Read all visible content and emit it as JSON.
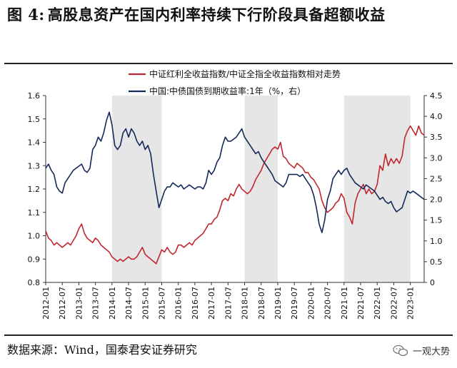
{
  "title": {
    "prefix": "图 4:",
    "text": "高股息资产在国内利率持续下行阶段具备超额收益"
  },
  "footer": {
    "source": "数据来源：Wind，国泰君安证券研究",
    "brand": "一观大势"
  },
  "chart_data": {
    "type": "line",
    "title": "",
    "xlabel": "",
    "ylabel_left": "",
    "ylabel_right": "",
    "y_left": {
      "min": 0.8,
      "max": 1.6,
      "ticks": [
        "0.8",
        "0.9",
        "1.0",
        "1.1",
        "1.2",
        "1.3",
        "1.4",
        "1.5",
        "1.6"
      ]
    },
    "y_right": {
      "min": 0,
      "max": 4.5,
      "ticks": [
        "0",
        "0.5",
        "1.0",
        "1.5",
        "2.0",
        "2.5",
        "3.0",
        "3.5",
        "4.0",
        "4.5"
      ]
    },
    "x_ticks": [
      "2012-01",
      "2012-07",
      "2013-01",
      "2013-07",
      "2014-01",
      "2014-07",
      "2015-01",
      "2015-07",
      "2016-01",
      "2016-07",
      "2017-01",
      "2017-07",
      "2018-01",
      "2018-07",
      "2019-01",
      "2019-07",
      "2020-01",
      "2020-07",
      "2021-01",
      "2021-07",
      "2022-01",
      "2022-07",
      "2023-01"
    ],
    "x_range": [
      "2012-01",
      "2023-06"
    ],
    "legend_position": "top-right",
    "shaded_periods": [
      {
        "start": "2014-01",
        "end": "2015-07"
      },
      {
        "start": "2018-01",
        "end": "2019-01"
      },
      {
        "start": "2021-01",
        "end": "2023-01"
      }
    ],
    "series": [
      {
        "name": "中证红利全收益指数/中证全指全收益指数相对走势",
        "axis": "left",
        "color": "#c0262c",
        "points": [
          [
            "2012-01",
            1.02
          ],
          [
            "2012-02",
            0.99
          ],
          [
            "2012-03",
            0.98
          ],
          [
            "2012-04",
            0.96
          ],
          [
            "2012-05",
            0.97
          ],
          [
            "2012-06",
            0.96
          ],
          [
            "2012-07",
            0.95
          ],
          [
            "2012-08",
            0.96
          ],
          [
            "2012-09",
            0.97
          ],
          [
            "2012-10",
            0.96
          ],
          [
            "2012-11",
            0.98
          ],
          [
            "2012-12",
            1.0
          ],
          [
            "2013-01",
            1.03
          ],
          [
            "2013-02",
            1.05
          ],
          [
            "2013-03",
            1.01
          ],
          [
            "2013-04",
            0.99
          ],
          [
            "2013-05",
            0.98
          ],
          [
            "2013-06",
            0.97
          ],
          [
            "2013-07",
            0.99
          ],
          [
            "2013-08",
            0.98
          ],
          [
            "2013-09",
            0.96
          ],
          [
            "2013-10",
            0.95
          ],
          [
            "2013-11",
            0.94
          ],
          [
            "2013-12",
            0.93
          ],
          [
            "2014-01",
            0.91
          ],
          [
            "2014-02",
            0.9
          ],
          [
            "2014-03",
            0.89
          ],
          [
            "2014-04",
            0.9
          ],
          [
            "2014-05",
            0.89
          ],
          [
            "2014-06",
            0.9
          ],
          [
            "2014-07",
            0.91
          ],
          [
            "2014-08",
            0.9
          ],
          [
            "2014-09",
            0.9
          ],
          [
            "2014-10",
            0.91
          ],
          [
            "2014-11",
            0.93
          ],
          [
            "2014-12",
            0.95
          ],
          [
            "2015-01",
            0.92
          ],
          [
            "2015-02",
            0.91
          ],
          [
            "2015-03",
            0.9
          ],
          [
            "2015-04",
            0.89
          ],
          [
            "2015-05",
            0.88
          ],
          [
            "2015-06",
            0.91
          ],
          [
            "2015-07",
            0.94
          ],
          [
            "2015-08",
            0.93
          ],
          [
            "2015-09",
            0.95
          ],
          [
            "2015-10",
            0.93
          ],
          [
            "2015-11",
            0.92
          ],
          [
            "2015-12",
            0.93
          ],
          [
            "2016-01",
            0.96
          ],
          [
            "2016-02",
            0.96
          ],
          [
            "2016-03",
            0.95
          ],
          [
            "2016-04",
            0.96
          ],
          [
            "2016-05",
            0.97
          ],
          [
            "2016-06",
            0.96
          ],
          [
            "2016-07",
            0.98
          ],
          [
            "2016-08",
            0.99
          ],
          [
            "2016-09",
            1.0
          ],
          [
            "2016-10",
            1.01
          ],
          [
            "2016-11",
            1.03
          ],
          [
            "2016-12",
            1.05
          ],
          [
            "2017-01",
            1.05
          ],
          [
            "2017-02",
            1.07
          ],
          [
            "2017-03",
            1.08
          ],
          [
            "2017-04",
            1.11
          ],
          [
            "2017-05",
            1.15
          ],
          [
            "2017-06",
            1.16
          ],
          [
            "2017-07",
            1.15
          ],
          [
            "2017-08",
            1.18
          ],
          [
            "2017-09",
            1.17
          ],
          [
            "2017-10",
            1.2
          ],
          [
            "2017-11",
            1.22
          ],
          [
            "2017-12",
            1.2
          ],
          [
            "2018-01",
            1.19
          ],
          [
            "2018-02",
            1.18
          ],
          [
            "2018-03",
            1.19
          ],
          [
            "2018-04",
            1.21
          ],
          [
            "2018-05",
            1.24
          ],
          [
            "2018-06",
            1.26
          ],
          [
            "2018-07",
            1.28
          ],
          [
            "2018-08",
            1.31
          ],
          [
            "2018-09",
            1.33
          ],
          [
            "2018-10",
            1.35
          ],
          [
            "2018-11",
            1.37
          ],
          [
            "2018-12",
            1.38
          ],
          [
            "2019-01",
            1.37
          ],
          [
            "2019-02",
            1.4
          ],
          [
            "2019-03",
            1.34
          ],
          [
            "2019-04",
            1.33
          ],
          [
            "2019-05",
            1.31
          ],
          [
            "2019-06",
            1.3
          ],
          [
            "2019-07",
            1.29
          ],
          [
            "2019-08",
            1.31
          ],
          [
            "2019-09",
            1.3
          ],
          [
            "2019-10",
            1.29
          ],
          [
            "2019-11",
            1.27
          ],
          [
            "2019-12",
            1.27
          ],
          [
            "2020-01",
            1.25
          ],
          [
            "2020-02",
            1.24
          ],
          [
            "2020-03",
            1.22
          ],
          [
            "2020-04",
            1.2
          ],
          [
            "2020-05",
            1.15
          ],
          [
            "2020-06",
            1.12
          ],
          [
            "2020-07",
            1.1
          ],
          [
            "2020-08",
            1.11
          ],
          [
            "2020-09",
            1.12
          ],
          [
            "2020-10",
            1.14
          ],
          [
            "2020-11",
            1.15
          ],
          [
            "2020-12",
            1.18
          ],
          [
            "2021-01",
            1.16
          ],
          [
            "2021-02",
            1.1
          ],
          [
            "2021-03",
            1.08
          ],
          [
            "2021-04",
            1.05
          ],
          [
            "2021-05",
            1.14
          ],
          [
            "2021-06",
            1.18
          ],
          [
            "2021-07",
            1.2
          ],
          [
            "2021-08",
            1.22
          ],
          [
            "2021-09",
            1.18
          ],
          [
            "2021-10",
            1.2
          ],
          [
            "2021-11",
            1.18
          ],
          [
            "2021-12",
            1.19
          ],
          [
            "2022-01",
            1.22
          ],
          [
            "2022-02",
            1.3
          ],
          [
            "2022-03",
            1.28
          ],
          [
            "2022-04",
            1.35
          ],
          [
            "2022-05",
            1.3
          ],
          [
            "2022-06",
            1.33
          ],
          [
            "2022-07",
            1.31
          ],
          [
            "2022-08",
            1.33
          ],
          [
            "2022-09",
            1.31
          ],
          [
            "2022-10",
            1.34
          ],
          [
            "2022-11",
            1.42
          ],
          [
            "2022-12",
            1.45
          ],
          [
            "2023-01",
            1.47
          ],
          [
            "2023-02",
            1.45
          ],
          [
            "2023-03",
            1.43
          ],
          [
            "2023-04",
            1.47
          ],
          [
            "2023-05",
            1.44
          ],
          [
            "2023-06",
            1.43
          ]
        ]
      },
      {
        "name": "中国:中债国债到期收益率:1年（%，右）",
        "axis": "right",
        "color": "#14285a",
        "points": [
          [
            "2012-01",
            2.75
          ],
          [
            "2012-02",
            2.85
          ],
          [
            "2012-03",
            2.7
          ],
          [
            "2012-04",
            2.6
          ],
          [
            "2012-05",
            2.3
          ],
          [
            "2012-06",
            2.2
          ],
          [
            "2012-07",
            2.15
          ],
          [
            "2012-08",
            2.4
          ],
          [
            "2012-09",
            2.5
          ],
          [
            "2012-10",
            2.6
          ],
          [
            "2012-11",
            2.7
          ],
          [
            "2012-12",
            2.75
          ],
          [
            "2013-01",
            2.8
          ],
          [
            "2013-02",
            2.85
          ],
          [
            "2013-03",
            2.7
          ],
          [
            "2013-04",
            2.65
          ],
          [
            "2013-05",
            2.75
          ],
          [
            "2013-06",
            3.2
          ],
          [
            "2013-07",
            3.3
          ],
          [
            "2013-08",
            3.5
          ],
          [
            "2013-09",
            3.4
          ],
          [
            "2013-10",
            3.6
          ],
          [
            "2013-11",
            3.9
          ],
          [
            "2013-12",
            4.1
          ],
          [
            "2014-01",
            3.8
          ],
          [
            "2014-02",
            3.3
          ],
          [
            "2014-03",
            3.2
          ],
          [
            "2014-04",
            3.3
          ],
          [
            "2014-05",
            3.6
          ],
          [
            "2014-06",
            3.7
          ],
          [
            "2014-07",
            3.5
          ],
          [
            "2014-08",
            3.7
          ],
          [
            "2014-09",
            3.6
          ],
          [
            "2014-10",
            3.4
          ],
          [
            "2014-11",
            3.3
          ],
          [
            "2014-12",
            3.4
          ],
          [
            "2015-01",
            3.2
          ],
          [
            "2015-02",
            3.3
          ],
          [
            "2015-03",
            3.1
          ],
          [
            "2015-04",
            2.6
          ],
          [
            "2015-05",
            2.2
          ],
          [
            "2015-06",
            1.8
          ],
          [
            "2015-07",
            2.0
          ],
          [
            "2015-08",
            2.2
          ],
          [
            "2015-09",
            2.3
          ],
          [
            "2015-10",
            2.3
          ],
          [
            "2015-11",
            2.4
          ],
          [
            "2015-12",
            2.35
          ],
          [
            "2016-01",
            2.3
          ],
          [
            "2016-02",
            2.35
          ],
          [
            "2016-03",
            2.25
          ],
          [
            "2016-04",
            2.3
          ],
          [
            "2016-05",
            2.35
          ],
          [
            "2016-06",
            2.3
          ],
          [
            "2016-07",
            2.25
          ],
          [
            "2016-08",
            2.3
          ],
          [
            "2016-09",
            2.3
          ],
          [
            "2016-10",
            2.25
          ],
          [
            "2016-11",
            2.4
          ],
          [
            "2016-12",
            2.7
          ],
          [
            "2017-01",
            2.6
          ],
          [
            "2017-02",
            2.7
          ],
          [
            "2017-03",
            2.9
          ],
          [
            "2017-04",
            3.0
          ],
          [
            "2017-05",
            3.3
          ],
          [
            "2017-06",
            3.5
          ],
          [
            "2017-07",
            3.4
          ],
          [
            "2017-08",
            3.4
          ],
          [
            "2017-09",
            3.45
          ],
          [
            "2017-10",
            3.5
          ],
          [
            "2017-11",
            3.6
          ],
          [
            "2017-12",
            3.7
          ],
          [
            "2018-01",
            3.5
          ],
          [
            "2018-02",
            3.4
          ],
          [
            "2018-03",
            3.3
          ],
          [
            "2018-04",
            3.2
          ],
          [
            "2018-05",
            3.1
          ],
          [
            "2018-06",
            3.15
          ],
          [
            "2018-07",
            3.0
          ],
          [
            "2018-08",
            2.9
          ],
          [
            "2018-09",
            2.8
          ],
          [
            "2018-10",
            2.7
          ],
          [
            "2018-11",
            2.6
          ],
          [
            "2018-12",
            2.45
          ],
          [
            "2019-01",
            2.4
          ],
          [
            "2019-02",
            2.35
          ],
          [
            "2019-03",
            2.3
          ],
          [
            "2019-04",
            2.4
          ],
          [
            "2019-05",
            2.6
          ],
          [
            "2019-06",
            2.6
          ],
          [
            "2019-07",
            2.6
          ],
          [
            "2019-08",
            2.6
          ],
          [
            "2019-09",
            2.55
          ],
          [
            "2019-10",
            2.6
          ],
          [
            "2019-11",
            2.5
          ],
          [
            "2019-12",
            2.4
          ],
          [
            "2020-01",
            2.3
          ],
          [
            "2020-02",
            2.1
          ],
          [
            "2020-03",
            1.8
          ],
          [
            "2020-04",
            1.4
          ],
          [
            "2020-05",
            1.2
          ],
          [
            "2020-06",
            1.5
          ],
          [
            "2020-07",
            2.0
          ],
          [
            "2020-08",
            2.2
          ],
          [
            "2020-09",
            2.5
          ],
          [
            "2020-10",
            2.6
          ],
          [
            "2020-11",
            2.7
          ],
          [
            "2020-12",
            2.6
          ],
          [
            "2021-01",
            2.7
          ],
          [
            "2021-02",
            2.75
          ],
          [
            "2021-03",
            2.6
          ],
          [
            "2021-04",
            2.5
          ],
          [
            "2021-05",
            2.4
          ],
          [
            "2021-06",
            2.35
          ],
          [
            "2021-07",
            2.3
          ],
          [
            "2021-08",
            2.25
          ],
          [
            "2021-09",
            2.35
          ],
          [
            "2021-10",
            2.3
          ],
          [
            "2021-11",
            2.25
          ],
          [
            "2021-12",
            2.2
          ],
          [
            "2022-01",
            2.1
          ],
          [
            "2022-02",
            2.0
          ],
          [
            "2022-03",
            2.05
          ],
          [
            "2022-04",
            1.95
          ],
          [
            "2022-05",
            1.9
          ],
          [
            "2022-06",
            1.95
          ],
          [
            "2022-07",
            1.8
          ],
          [
            "2022-08",
            1.7
          ],
          [
            "2022-09",
            1.75
          ],
          [
            "2022-10",
            1.8
          ],
          [
            "2022-11",
            2.0
          ],
          [
            "2022-12",
            2.2
          ],
          [
            "2023-01",
            2.15
          ],
          [
            "2023-02",
            2.2
          ],
          [
            "2023-03",
            2.15
          ],
          [
            "2023-04",
            2.1
          ],
          [
            "2023-05",
            2.05
          ],
          [
            "2023-06",
            2.0
          ]
        ]
      }
    ]
  }
}
